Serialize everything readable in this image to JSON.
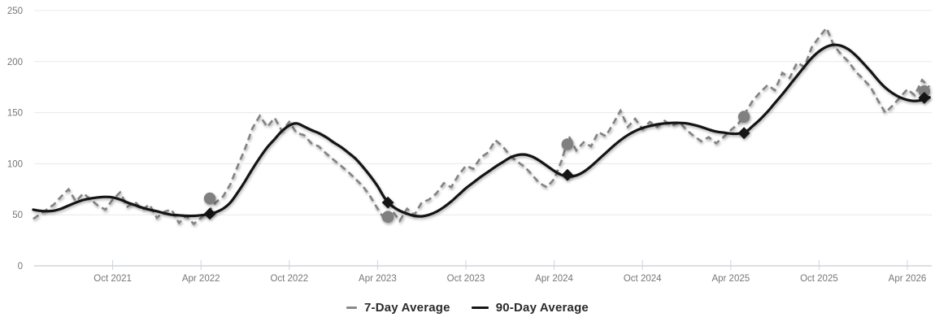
{
  "chart_data": {
    "type": "line",
    "title": "",
    "x_axis": {
      "label": "",
      "month_index_origin": "Apr 2021",
      "tick_months": [
        6,
        12,
        18,
        24,
        30,
        36,
        42,
        48,
        54,
        60
      ],
      "tick_labels": [
        "Oct 2021",
        "Apr 2022",
        "Oct 2022",
        "Apr 2023",
        "Oct 2023",
        "Apr 2024",
        "Oct 2024",
        "Apr 2025",
        "Oct 2025",
        "Apr 2026"
      ],
      "range_months": [
        0,
        62
      ]
    },
    "y_axis": {
      "label": "",
      "ticks": [
        0,
        50,
        100,
        150,
        200,
        250
      ],
      "range": [
        0,
        250
      ],
      "grid": true
    },
    "legend_position": "bottom-center",
    "series": [
      {
        "name": "7-Day Average",
        "style": "dashed",
        "color": "#828282",
        "points": [
          [
            0.6,
            46
          ],
          [
            1,
            50
          ],
          [
            1.5,
            55
          ],
          [
            2,
            60
          ],
          [
            2.5,
            68
          ],
          [
            3,
            75
          ],
          [
            3.5,
            63
          ],
          [
            4,
            71
          ],
          [
            4.5,
            65
          ],
          [
            5,
            59
          ],
          [
            5.5,
            55
          ],
          [
            6,
            65
          ],
          [
            6.5,
            72
          ],
          [
            7,
            58
          ],
          [
            7.5,
            63
          ],
          [
            8,
            55
          ],
          [
            8.5,
            60
          ],
          [
            9,
            47
          ],
          [
            9.5,
            53
          ],
          [
            10,
            55
          ],
          [
            10.5,
            42
          ],
          [
            11,
            49
          ],
          [
            11.5,
            41
          ],
          [
            12,
            47
          ],
          [
            12.5,
            53
          ],
          [
            13,
            62
          ],
          [
            13.5,
            68
          ],
          [
            14,
            80
          ],
          [
            14.5,
            98
          ],
          [
            15,
            115
          ],
          [
            15.5,
            135
          ],
          [
            16,
            147
          ],
          [
            16.5,
            136
          ],
          [
            17,
            145
          ],
          [
            17.5,
            132
          ],
          [
            18,
            141
          ],
          [
            18.5,
            130
          ],
          [
            19,
            128
          ],
          [
            19.5,
            120
          ],
          [
            20,
            117
          ],
          [
            20.5,
            110
          ],
          [
            21,
            104
          ],
          [
            21.5,
            98
          ],
          [
            22,
            92
          ],
          [
            22.5,
            85
          ],
          [
            23,
            78
          ],
          [
            23.5,
            68
          ],
          [
            24,
            56
          ],
          [
            24.5,
            45
          ],
          [
            25,
            54
          ],
          [
            25.5,
            44
          ],
          [
            26,
            56
          ],
          [
            26.5,
            50
          ],
          [
            27,
            62
          ],
          [
            27.5,
            65
          ],
          [
            28,
            71
          ],
          [
            28.5,
            81
          ],
          [
            29,
            77
          ],
          [
            29.5,
            89
          ],
          [
            30,
            98
          ],
          [
            30.5,
            95
          ],
          [
            31,
            106
          ],
          [
            31.5,
            111
          ],
          [
            32,
            123
          ],
          [
            32.5,
            117
          ],
          [
            33,
            108
          ],
          [
            33.5,
            102
          ],
          [
            34,
            97
          ],
          [
            34.5,
            89
          ],
          [
            35,
            81
          ],
          [
            35.5,
            77
          ],
          [
            36,
            85
          ],
          [
            36.5,
            103
          ],
          [
            37,
            127
          ],
          [
            37.5,
            113
          ],
          [
            38,
            121
          ],
          [
            38.5,
            117
          ],
          [
            39,
            131
          ],
          [
            39.5,
            127
          ],
          [
            40,
            139
          ],
          [
            40.5,
            152
          ],
          [
            41,
            136
          ],
          [
            41.5,
            144
          ],
          [
            42,
            134
          ],
          [
            42.5,
            141
          ],
          [
            43,
            136
          ],
          [
            43.5,
            142
          ],
          [
            44,
            137
          ],
          [
            44.5,
            141
          ],
          [
            45,
            133
          ],
          [
            45.5,
            127
          ],
          [
            46,
            122
          ],
          [
            46.5,
            126
          ],
          [
            47,
            120
          ],
          [
            47.5,
            126
          ],
          [
            48,
            133
          ],
          [
            48.5,
            139
          ],
          [
            49,
            150
          ],
          [
            49.5,
            162
          ],
          [
            50,
            170
          ],
          [
            50.5,
            177
          ],
          [
            51,
            172
          ],
          [
            51.5,
            189
          ],
          [
            52,
            184
          ],
          [
            52.5,
            199
          ],
          [
            53,
            195
          ],
          [
            53.5,
            214
          ],
          [
            54,
            224
          ],
          [
            54.5,
            233
          ],
          [
            55,
            216
          ],
          [
            55.5,
            207
          ],
          [
            56,
            200
          ],
          [
            56.5,
            190
          ],
          [
            57,
            183
          ],
          [
            57.5,
            175
          ],
          [
            58,
            162
          ],
          [
            58.5,
            150
          ],
          [
            59,
            157
          ],
          [
            59.5,
            165
          ],
          [
            60,
            173
          ],
          [
            60.5,
            167
          ],
          [
            61,
            182
          ],
          [
            61.5,
            175
          ]
        ]
      },
      {
        "name": "90-Day Average",
        "style": "solid",
        "color": "#141414",
        "points": [
          [
            0.6,
            55
          ],
          [
            1,
            54
          ],
          [
            1.5,
            53.5
          ],
          [
            2,
            54
          ],
          [
            2.5,
            56
          ],
          [
            3,
            59
          ],
          [
            3.5,
            62
          ],
          [
            4,
            64.5
          ],
          [
            4.5,
            66
          ],
          [
            5,
            67
          ],
          [
            5.5,
            67.5
          ],
          [
            6,
            67
          ],
          [
            6.5,
            65
          ],
          [
            7,
            62
          ],
          [
            7.5,
            59.5
          ],
          [
            8,
            57
          ],
          [
            8.5,
            55
          ],
          [
            9,
            53.5
          ],
          [
            9.5,
            51.5
          ],
          [
            10,
            50
          ],
          [
            10.5,
            49.5
          ],
          [
            11,
            49
          ],
          [
            11.5,
            49
          ],
          [
            12,
            49.5
          ],
          [
            12.5,
            50.5
          ],
          [
            13,
            52.5
          ],
          [
            13.5,
            56
          ],
          [
            14,
            62
          ],
          [
            14.5,
            72
          ],
          [
            15,
            83
          ],
          [
            15.5,
            95
          ],
          [
            16,
            106
          ],
          [
            16.5,
            116
          ],
          [
            17,
            124
          ],
          [
            17.5,
            132
          ],
          [
            18,
            137.5
          ],
          [
            18.5,
            139.5
          ],
          [
            19,
            136.5
          ],
          [
            19.5,
            133
          ],
          [
            20,
            130
          ],
          [
            20.5,
            126
          ],
          [
            21,
            121
          ],
          [
            21.5,
            116.5
          ],
          [
            22,
            111
          ],
          [
            22.5,
            105
          ],
          [
            23,
            97
          ],
          [
            23.5,
            88
          ],
          [
            24,
            78
          ],
          [
            24.5,
            66
          ],
          [
            25,
            58.5
          ],
          [
            25.5,
            54
          ],
          [
            26,
            51
          ],
          [
            26.5,
            49
          ],
          [
            27,
            48.5
          ],
          [
            27.5,
            50
          ],
          [
            28,
            53
          ],
          [
            28.5,
            57.5
          ],
          [
            29,
            63
          ],
          [
            29.5,
            69.5
          ],
          [
            30,
            76
          ],
          [
            30.5,
            81.5
          ],
          [
            31,
            87
          ],
          [
            31.5,
            92
          ],
          [
            32,
            97
          ],
          [
            32.5,
            101.5
          ],
          [
            33,
            106
          ],
          [
            33.5,
            108.5
          ],
          [
            34,
            109
          ],
          [
            34.5,
            107
          ],
          [
            35,
            103
          ],
          [
            35.5,
            98
          ],
          [
            36,
            93
          ],
          [
            36.5,
            89
          ],
          [
            37,
            87.5
          ],
          [
            37.5,
            88.5
          ],
          [
            38,
            92
          ],
          [
            38.5,
            97.5
          ],
          [
            39,
            104
          ],
          [
            39.5,
            110.5
          ],
          [
            40,
            117
          ],
          [
            40.5,
            123
          ],
          [
            41,
            128
          ],
          [
            41.5,
            132
          ],
          [
            42,
            135
          ],
          [
            42.5,
            137
          ],
          [
            43,
            138.5
          ],
          [
            43.5,
            139.5
          ],
          [
            44,
            140
          ],
          [
            44.5,
            140
          ],
          [
            45,
            139.5
          ],
          [
            45.5,
            138
          ],
          [
            46,
            136
          ],
          [
            46.5,
            133.5
          ],
          [
            47,
            131.5
          ],
          [
            47.5,
            130.5
          ],
          [
            48,
            129.5
          ],
          [
            48.5,
            129.5
          ],
          [
            49,
            131
          ],
          [
            49.5,
            137
          ],
          [
            50,
            143.5
          ],
          [
            50.5,
            151
          ],
          [
            51,
            159.5
          ],
          [
            51.5,
            168
          ],
          [
            52,
            177
          ],
          [
            52.5,
            186
          ],
          [
            53,
            195
          ],
          [
            53.5,
            203.5
          ],
          [
            54,
            210
          ],
          [
            54.5,
            214.5
          ],
          [
            55,
            216.5
          ],
          [
            55.5,
            215.5
          ],
          [
            56,
            212
          ],
          [
            56.5,
            206
          ],
          [
            57,
            198.5
          ],
          [
            57.5,
            190.5
          ],
          [
            58,
            182
          ],
          [
            58.5,
            174.5
          ],
          [
            59,
            169
          ],
          [
            59.5,
            165
          ],
          [
            60,
            162.5
          ],
          [
            60.5,
            161.5
          ],
          [
            61,
            162.5
          ],
          [
            61.5,
            165
          ]
        ]
      }
    ],
    "markers": [
      {
        "shape": "circle",
        "series": "7-Day Average",
        "color": "#808080",
        "points": [
          [
            12.6,
            66
          ],
          [
            24.7,
            48
          ],
          [
            36.9,
            119
          ],
          [
            48.9,
            146
          ],
          [
            61.15,
            171
          ]
        ]
      },
      {
        "shape": "diamond",
        "series": "90-Day Average",
        "color": "#141414",
        "points": [
          [
            12.6,
            51
          ],
          [
            24.7,
            62
          ],
          [
            36.9,
            89
          ],
          [
            48.9,
            130
          ],
          [
            61.15,
            164.5
          ]
        ]
      }
    ]
  },
  "legend": {
    "item_7day": "7-Day Average",
    "item_90day": "90-Day Average"
  },
  "colors": {
    "series_7day": "#828282",
    "series_90day": "#141414",
    "gridline": "#e8e8e8",
    "axis_line": "#b9c2cb",
    "axis_text": "#767676",
    "legend_text": "#2b2b2b",
    "background": "#ffffff"
  }
}
